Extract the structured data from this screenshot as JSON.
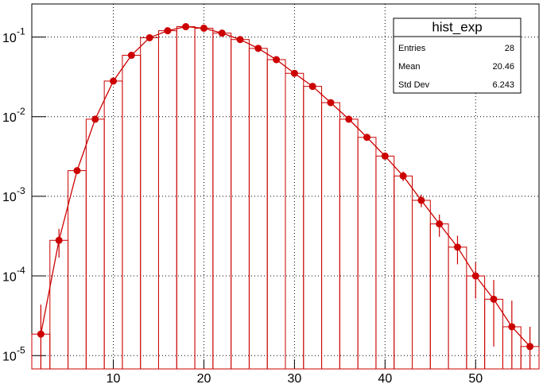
{
  "chart_data": {
    "type": "histogram",
    "stats": {
      "title": "hist_exp",
      "rows": [
        [
          "Entries",
          "28"
        ],
        [
          "Mean",
          "20.46"
        ],
        [
          "Std Dev",
          "6.243"
        ]
      ]
    },
    "bins": [
      1,
      3,
      5,
      7,
      9,
      11,
      13,
      15,
      17,
      19,
      21,
      23,
      25,
      27,
      29,
      31,
      33,
      35,
      37,
      39,
      41,
      43,
      45,
      47,
      49,
      51,
      53,
      55,
      57
    ],
    "x": [
      2,
      4,
      6,
      8,
      10,
      12,
      14,
      16,
      18,
      20,
      22,
      24,
      26,
      28,
      30,
      32,
      34,
      36,
      38,
      40,
      42,
      44,
      46,
      48,
      50,
      52,
      54,
      56
    ],
    "values": [
      1.86e-05,
      0.00028,
      0.0021,
      0.0093,
      0.028,
      0.059,
      0.098,
      0.12,
      0.135,
      0.129,
      0.112,
      0.093,
      0.072,
      0.052,
      0.035,
      0.024,
      0.015,
      0.0093,
      0.0055,
      0.0032,
      0.0018,
      0.00089,
      0.00045,
      0.00023,
      0.0001,
      5.1e-05,
      2.3e-05,
      1.3e-05
    ],
    "errors": [
      2.5e-05,
      0.00011,
      0.0002,
      0.0008,
      0.0015,
      0.002,
      0.002,
      0.002,
      0.002,
      0.002,
      0.002,
      0.002,
      0.002,
      0.0018,
      0.0015,
      0.0012,
      0.0009,
      0.0006,
      0.0004,
      0.0003,
      0.00025,
      0.00016,
      0.00014,
      9e-05,
      4.8e-05,
      3.8e-05,
      2.6e-05,
      1e-05
    ],
    "color": "#cc0000",
    "xlim": [
      1,
      57
    ],
    "xticks": [
      10,
      20,
      30,
      40,
      50
    ],
    "ylim": [
      6.8e-06,
      0.26
    ],
    "log_y": true,
    "yticks": [
      {
        "value": 1e-05,
        "label": "10",
        "exponent": "-5"
      },
      {
        "value": 0.0001,
        "label": "10",
        "exponent": "-4"
      },
      {
        "value": 0.001,
        "label": "10",
        "exponent": "-3"
      },
      {
        "value": 0.01,
        "label": "10",
        "exponent": "-2"
      },
      {
        "value": 0.1,
        "label": "10",
        "exponent": "-1"
      }
    ],
    "grid": true
  }
}
